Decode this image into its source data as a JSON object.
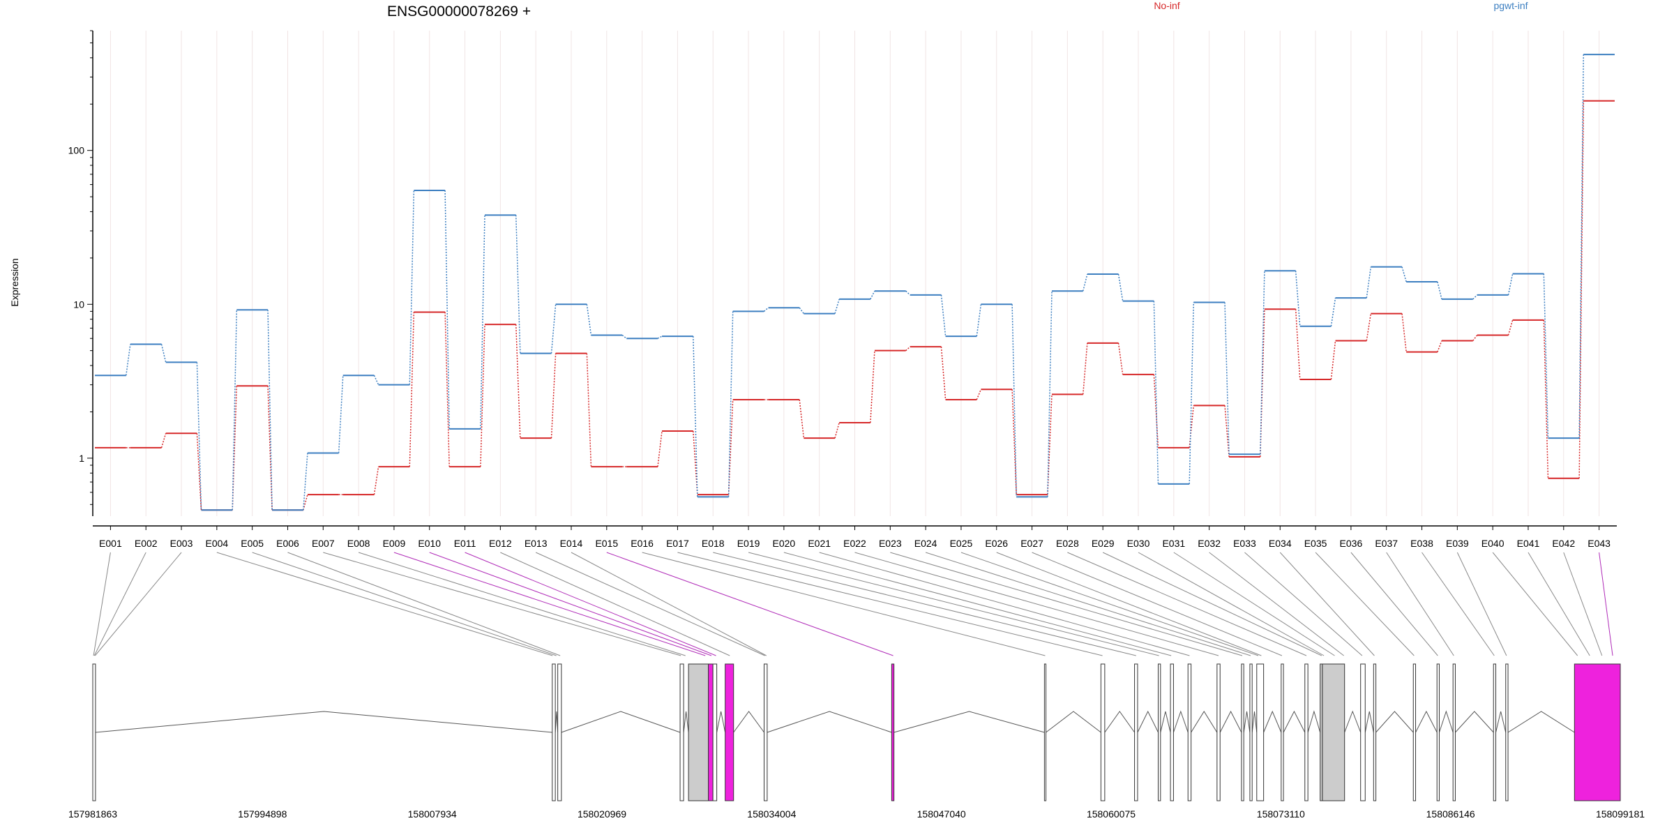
{
  "chart_data": {
    "type": "line",
    "title": "ENSG00000078269 +",
    "ylabel": "Expression",
    "yscale": "log",
    "ylim": [
      0.42,
      600
    ],
    "yticks": [
      1,
      10,
      100
    ],
    "grid": "vertical",
    "legend_placement": "top",
    "categories": [
      "E001",
      "E002",
      "E003",
      "E004",
      "E005",
      "E006",
      "E007",
      "E008",
      "E009",
      "E010",
      "E011",
      "E012",
      "E013",
      "E014",
      "E015",
      "E016",
      "E017",
      "E018",
      "E019",
      "E020",
      "E021",
      "E022",
      "E023",
      "E024",
      "E025",
      "E026",
      "E027",
      "E028",
      "E029",
      "E030",
      "E031",
      "E032",
      "E033",
      "E034",
      "E035",
      "E036",
      "E037",
      "E038",
      "E039",
      "E040",
      "E041",
      "E042",
      "E043"
    ],
    "series": [
      {
        "name": "No-inf",
        "color": "#d62728",
        "values": [
          1.17,
          1.17,
          1.45,
          0.46,
          2.95,
          0.46,
          0.58,
          0.58,
          0.88,
          8.9,
          0.88,
          7.4,
          1.35,
          4.8,
          0.88,
          0.88,
          1.5,
          0.58,
          2.4,
          2.4,
          1.35,
          1.7,
          5.0,
          5.3,
          2.4,
          2.8,
          0.58,
          2.6,
          5.6,
          3.5,
          1.17,
          2.2,
          1.02,
          9.3,
          3.25,
          5.8,
          8.7,
          4.9,
          5.8,
          6.3,
          7.9,
          0.74,
          210
        ]
      },
      {
        "name": "pgwt-inf",
        "color": "#3b7ec0",
        "values": [
          3.45,
          5.5,
          4.2,
          0.46,
          9.2,
          0.46,
          1.08,
          3.45,
          3.0,
          55,
          1.55,
          38,
          4.8,
          10,
          6.3,
          6.0,
          6.2,
          0.56,
          9.0,
          9.5,
          8.7,
          10.8,
          12.2,
          11.5,
          6.2,
          10,
          0.56,
          12.2,
          15.7,
          10.5,
          0.68,
          10.3,
          1.06,
          16.5,
          7.2,
          11,
          17.5,
          14,
          10.8,
          11.5,
          15.8,
          1.35,
          420
        ]
      }
    ]
  },
  "gene_model": {
    "genomic_ticks": [
      "157981863",
      "157994898",
      "158007934",
      "158020969",
      "158034004",
      "158047040",
      "158060075",
      "158073110",
      "158086146",
      "158099181"
    ],
    "highlight_color": "#ee22dd",
    "gray_color": "#cccccc"
  }
}
